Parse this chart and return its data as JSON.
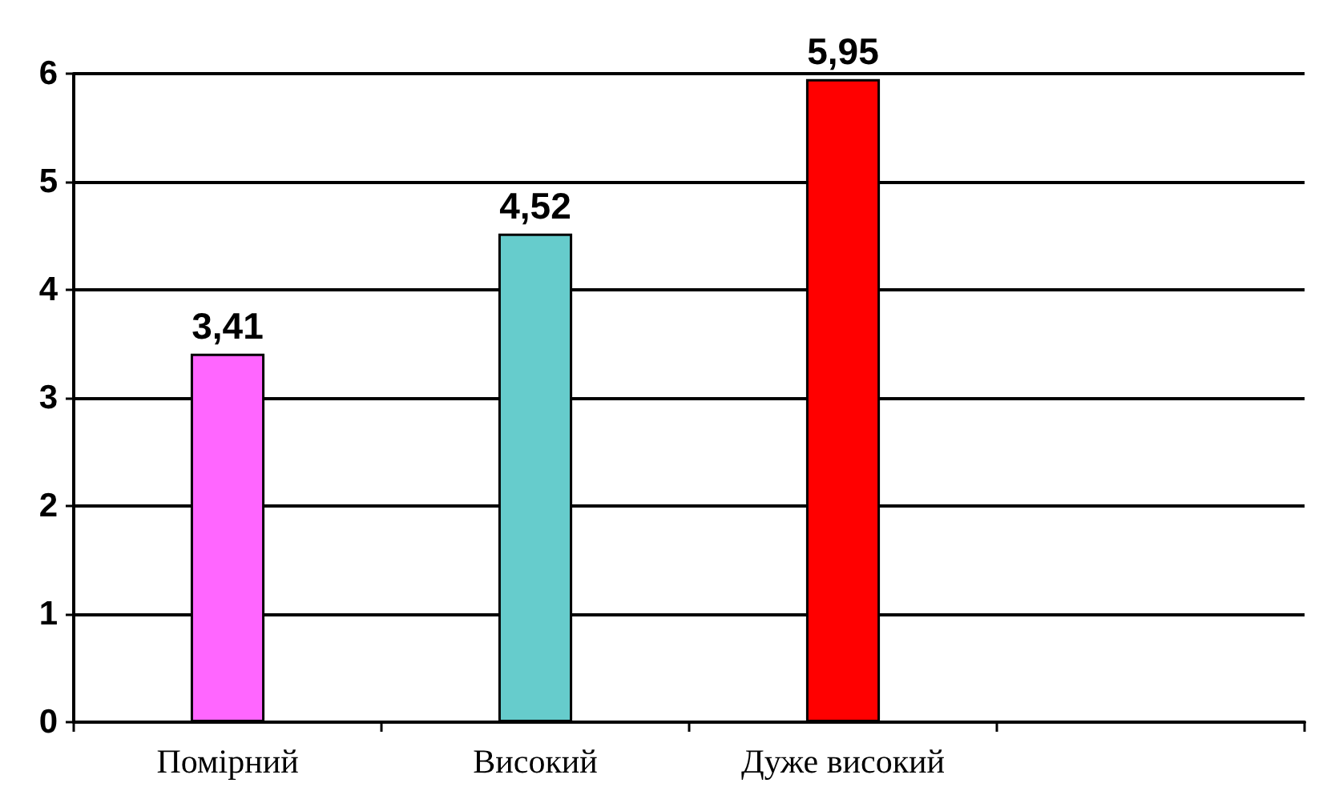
{
  "chart_data": {
    "type": "bar",
    "categories": [
      "Помірний",
      "Високий",
      "Дуже високий",
      null
    ],
    "values": [
      3.41,
      4.52,
      5.95,
      null
    ],
    "value_labels": [
      "3,41",
      "4,52",
      "5,95",
      null
    ],
    "colors": [
      "#ff66ff",
      "#66cccc",
      "#ff0000",
      null
    ],
    "ylim": [
      0,
      6
    ],
    "yticks": [
      0,
      1,
      2,
      3,
      4,
      5,
      6
    ],
    "grid": "y"
  }
}
